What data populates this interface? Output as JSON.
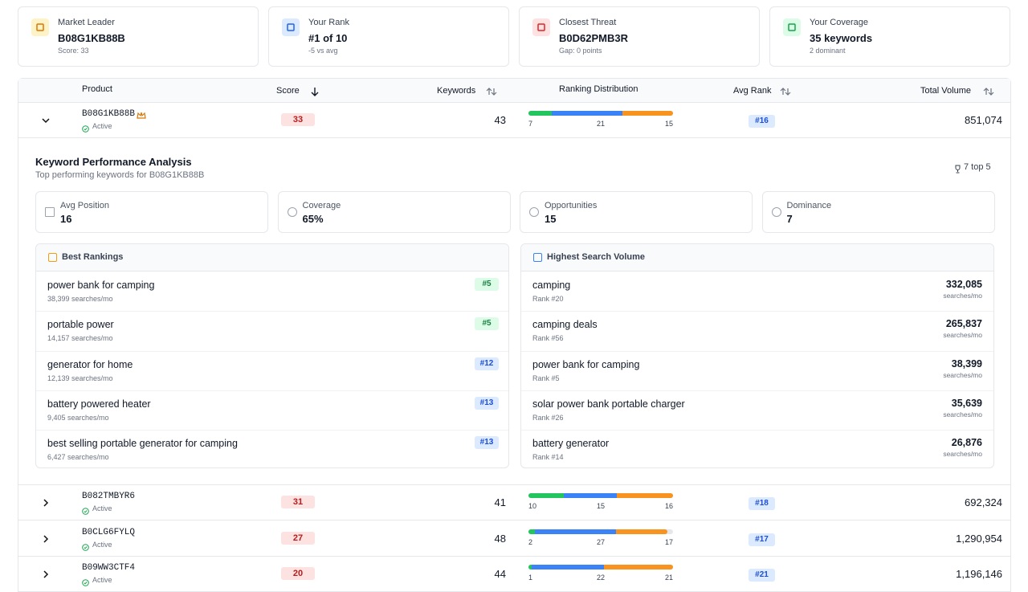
{
  "summary_cards": [
    {
      "label": "Market Leader",
      "value": "B08G1KB88B",
      "sub": "Score: 33"
    },
    {
      "label": "Your Rank",
      "value": "#1 of 10",
      "sub": "-5 vs avg"
    },
    {
      "label": "Closest Threat",
      "value": "B0D62PMB3R",
      "sub": "Gap: 0 points"
    },
    {
      "label": "Your Coverage",
      "value": "35 keywords",
      "sub": "2 dominant"
    }
  ],
  "table": {
    "columns": [
      "Product",
      "Score",
      "Keywords",
      "Ranking Distribution",
      "Avg Rank",
      "Total Volume"
    ],
    "rows": [
      {
        "product": "B08G1KB88B",
        "status": "Active",
        "score": 33,
        "keywords": 43,
        "distribution": [
          7,
          21,
          15
        ],
        "avg_rank": "#16",
        "total_volume": "851,074"
      },
      {
        "product": "B082TMBYR6",
        "status": "Active",
        "score": 31,
        "keywords": 41,
        "distribution": [
          10,
          15,
          16
        ],
        "avg_rank": "#18",
        "total_volume": "692,324"
      },
      {
        "product": "B0CLG6FYLQ",
        "status": "Active",
        "score": 27,
        "keywords": 48,
        "distribution": [
          2,
          27,
          17
        ],
        "avg_rank": "#17",
        "total_volume": "1,290,954"
      },
      {
        "product": "B09WW3CTF4",
        "status": "Active",
        "score": 20,
        "keywords": 44,
        "distribution": [
          1,
          22,
          21
        ],
        "avg_rank": "#21",
        "total_volume": "1,196,146"
      }
    ]
  },
  "detail": {
    "title": "Keyword Performance Analysis",
    "subtitle": "Top performing keywords for B08G1KB88B",
    "badge": "7 top 5",
    "metrics": [
      {
        "label": "Avg Position",
        "value": "16"
      },
      {
        "label": "Coverage",
        "value": "65%"
      },
      {
        "label": "Opportunities",
        "value": "15"
      },
      {
        "label": "Dominance",
        "value": "7"
      }
    ],
    "best_rankings": {
      "title": "Best Rankings",
      "items": [
        {
          "keyword": "power bank for camping",
          "rank": "#5",
          "volume": "38,399 searches/mo"
        },
        {
          "keyword": "portable power",
          "rank": "#5",
          "volume": "14,157 searches/mo"
        },
        {
          "keyword": "generator for home",
          "rank": "#12",
          "volume": "12,139 searches/mo"
        },
        {
          "keyword": "battery powered heater",
          "rank": "#13",
          "volume": "9,405 searches/mo"
        },
        {
          "keyword": "best selling portable generator for camping",
          "rank": "#13",
          "volume": "6,427 searches/mo"
        }
      ]
    },
    "highest_volume": {
      "title": "Highest Search Volume",
      "items": [
        {
          "keyword": "camping",
          "rank": "Rank #20",
          "volume": "332,085",
          "unit": "searches/mo"
        },
        {
          "keyword": "camping deals",
          "rank": "Rank #56",
          "volume": "265,837",
          "unit": "searches/mo"
        },
        {
          "keyword": "power bank for camping",
          "rank": "Rank #5",
          "volume": "38,399",
          "unit": "searches/mo"
        },
        {
          "keyword": "solar power bank portable charger",
          "rank": "Rank #26",
          "volume": "35,639",
          "unit": "searches/mo"
        },
        {
          "keyword": "battery generator",
          "rank": "Rank #14",
          "volume": "26,876",
          "unit": "searches/mo"
        }
      ]
    }
  }
}
